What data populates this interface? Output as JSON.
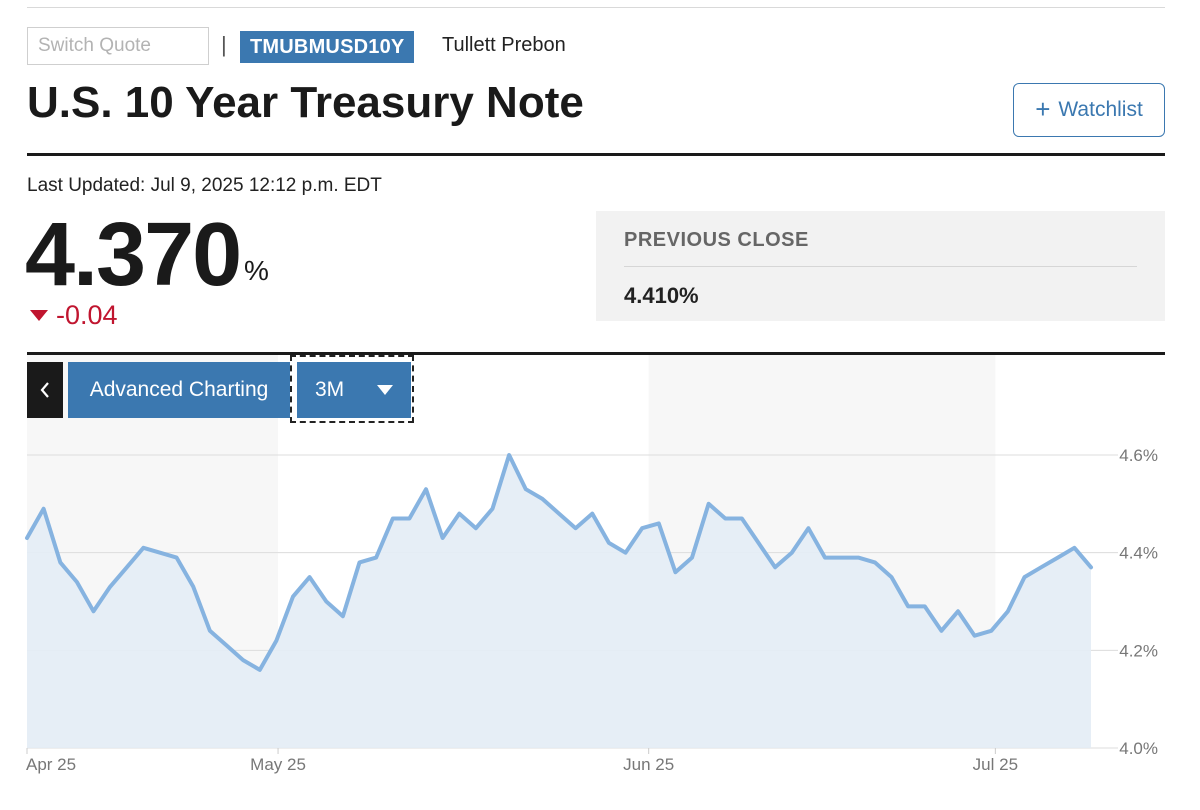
{
  "header": {
    "search_placeholder": "Switch Quote",
    "separator": "|",
    "ticker": "TMUBMUSD10Y",
    "source": "Tullett Prebon",
    "title": "U.S. 10 Year Treasury Note",
    "watchlist_label": "Watchlist"
  },
  "quote": {
    "last_updated": "Last Updated: Jul 9, 2025 12:12 p.m. EDT",
    "price": "4.370",
    "unit": "%",
    "change": "-0.04",
    "previous_close_label": "PREVIOUS CLOSE",
    "previous_close_value": "4.410%"
  },
  "chart_controls": {
    "back_icon": "chevron-left-icon",
    "advanced_label": "Advanced Charting",
    "range_label": "3M",
    "range_icon": "caret-down-icon"
  },
  "colors": {
    "accent": "#3b78b0",
    "negative": "#c0152f",
    "line": "#86b3e0",
    "fill": "#e3ecf5"
  },
  "chart_data": {
    "type": "area",
    "ylim": [
      4.0,
      4.6
    ],
    "yticks": [
      4.6,
      4.4,
      4.2,
      4.0
    ],
    "ytick_labels": [
      "4.6%",
      "4.4%",
      "4.2%",
      "4.0%"
    ],
    "xtick_labels": [
      "Apr 25",
      "May 25",
      "Jun 25",
      "Jul 25"
    ],
    "xtick_index": [
      0,
      21,
      52,
      81
    ],
    "shaded_months": [
      [
        21,
        52
      ],
      [
        52,
        81
      ]
    ],
    "x_count": 90,
    "values": [
      4.43,
      4.49,
      4.38,
      4.34,
      4.28,
      4.33,
      4.37,
      4.41,
      4.4,
      4.39,
      4.33,
      4.24,
      4.21,
      4.18,
      4.16,
      4.22,
      4.31,
      4.35,
      4.3,
      4.27,
      4.38,
      4.39,
      4.47,
      4.47,
      4.53,
      4.43,
      4.48,
      4.45,
      4.49,
      4.6,
      4.53,
      4.51,
      4.48,
      4.45,
      4.48,
      4.42,
      4.4,
      4.45,
      4.46,
      4.36,
      4.39,
      4.5,
      4.47,
      4.47,
      4.42,
      4.37,
      4.4,
      4.45,
      4.39,
      4.39,
      4.39,
      4.38,
      4.35,
      4.29,
      4.29,
      4.24,
      4.28,
      4.23,
      4.24,
      4.28,
      4.35,
      4.37,
      4.39,
      4.41,
      4.37
    ]
  }
}
